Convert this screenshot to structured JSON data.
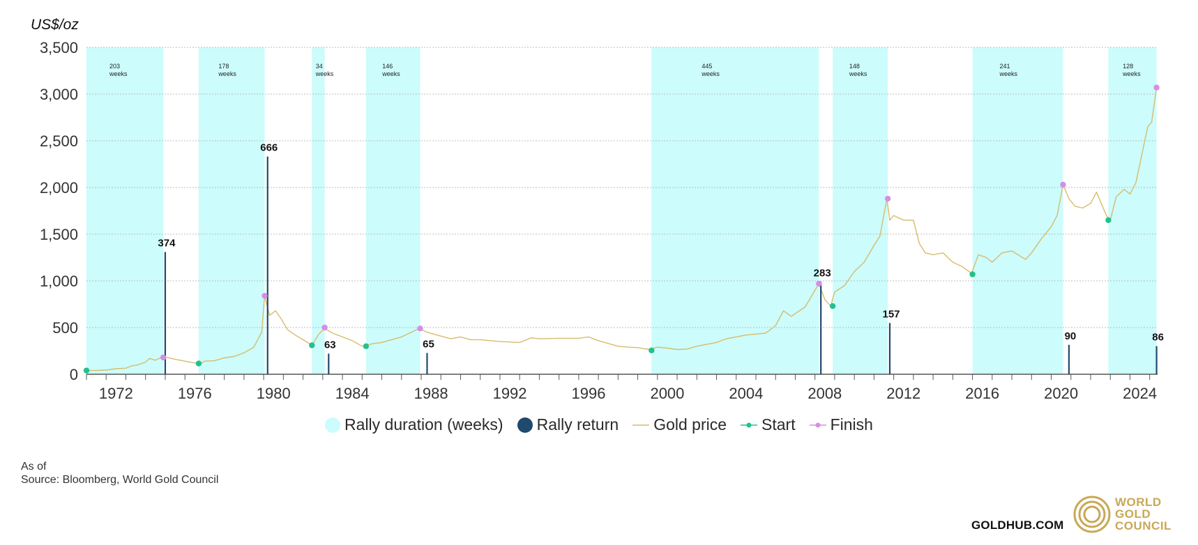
{
  "colors": {
    "rally_band": "#ccfcfc",
    "rally_return": "#1f4a6e",
    "gold_price": "#d6bc6a",
    "start": "#23c08e",
    "finish": "#d58ee6",
    "grid": "#bdbdbd",
    "axis": "#555555"
  },
  "unit_label": "US$/oz",
  "legend": {
    "rally_duration": "Rally duration (weeks)",
    "rally_return": "Rally return",
    "gold_price": "Gold price",
    "start": "Start",
    "finish": "Finish"
  },
  "footer": {
    "as_of": "As of",
    "source": "Source: Bloomberg, World Gold Council"
  },
  "brand": {
    "url": "GOLDHUB.COM",
    "logo_lines": [
      "WORLD",
      "GOLD",
      "COUNCIL"
    ],
    "logo_icon": "concentric-rings-icon"
  },
  "chart_data": {
    "type": "line",
    "ylabel": "US$/oz",
    "xlim": [
      1971.0,
      2025.4
    ],
    "ylim": [
      0,
      3500
    ],
    "yticks": [
      0,
      500,
      1000,
      1500,
      2000,
      2500,
      3000,
      3500
    ],
    "ytick_labels": [
      "0",
      "500",
      "1,000",
      "1,500",
      "2,000",
      "2,500",
      "3,000",
      "3,500"
    ],
    "xticks_labeled": [
      1972,
      1976,
      1980,
      1984,
      1988,
      1992,
      1996,
      2000,
      2004,
      2008,
      2012,
      2016,
      2020,
      2024
    ],
    "grid": true,
    "legend_position": "bottom-center",
    "gold_price": {
      "x": [
        1971.0,
        1971.5,
        1972.0,
        1972.5,
        1973.0,
        1973.3,
        1973.6,
        1974.0,
        1974.2,
        1974.5,
        1974.8,
        1975.0,
        1975.5,
        1976.0,
        1976.5,
        1976.8,
        1977.0,
        1977.5,
        1978.0,
        1978.5,
        1979.0,
        1979.5,
        1979.9,
        1980.05,
        1980.3,
        1980.6,
        1980.9,
        1981.2,
        1981.6,
        1982.0,
        1982.45,
        1982.8,
        1983.1,
        1983.5,
        1984.0,
        1984.5,
        1985.0,
        1985.2,
        1985.6,
        1986.0,
        1986.5,
        1987.0,
        1987.5,
        1987.9,
        1988.3,
        1988.8,
        1989.5,
        1990.0,
        1990.5,
        1991.0,
        1992.0,
        1993.0,
        1993.6,
        1994.0,
        1995.0,
        1996.0,
        1996.5,
        1997.0,
        1997.5,
        1998.0,
        1998.5,
        1999.0,
        1999.6,
        2000.0,
        2000.5,
        2001.0,
        2001.5,
        2002.0,
        2002.5,
        2003.0,
        2003.5,
        2004.0,
        2004.5,
        2005.0,
        2005.5,
        2006.0,
        2006.4,
        2006.8,
        2007.0,
        2007.5,
        2008.0,
        2008.2,
        2008.5,
        2008.8,
        2009.0,
        2009.5,
        2010.0,
        2010.5,
        2011.0,
        2011.3,
        2011.65,
        2011.8,
        2012.0,
        2012.5,
        2013.0,
        2013.3,
        2013.6,
        2014.0,
        2014.5,
        2015.0,
        2015.5,
        2015.95,
        2016.3,
        2016.7,
        2017.0,
        2017.5,
        2018.0,
        2018.7,
        2019.0,
        2019.5,
        2020.0,
        2020.3,
        2020.6,
        2020.9,
        2021.2,
        2021.6,
        2022.0,
        2022.3,
        2022.8,
        2023.0,
        2023.3,
        2023.7,
        2024.0,
        2024.3,
        2024.6,
        2024.9,
        2025.1,
        2025.35
      ],
      "y": [
        40,
        41,
        45,
        60,
        65,
        90,
        100,
        130,
        170,
        150,
        180,
        185,
        160,
        140,
        120,
        115,
        140,
        145,
        175,
        190,
        230,
        290,
        450,
        840,
        630,
        680,
        590,
        480,
        420,
        370,
        310,
        430,
        490,
        440,
        400,
        360,
        300,
        310,
        330,
        340,
        370,
        400,
        450,
        490,
        450,
        420,
        380,
        400,
        370,
        370,
        350,
        340,
        390,
        380,
        385,
        385,
        400,
        360,
        330,
        300,
        290,
        285,
        265,
        290,
        280,
        265,
        270,
        300,
        320,
        340,
        380,
        400,
        420,
        430,
        440,
        520,
        680,
        620,
        650,
        720,
        900,
        970,
        800,
        730,
        880,
        950,
        1100,
        1200,
        1380,
        1480,
        1880,
        1650,
        1700,
        1650,
        1650,
        1400,
        1300,
        1280,
        1300,
        1200,
        1150,
        1080,
        1280,
        1250,
        1200,
        1300,
        1320,
        1230,
        1300,
        1450,
        1580,
        1700,
        2030,
        1880,
        1800,
        1780,
        1830,
        1950,
        1700,
        1650,
        1900,
        1980,
        1930,
        2050,
        2350,
        2650,
        2700,
        3070
      ]
    },
    "rally_bands": [
      {
        "start": 1971.0,
        "end": 1974.9,
        "duration_weeks": 203,
        "label": "203\nweeks"
      },
      {
        "start": 1976.7,
        "end": 1980.05,
        "duration_weeks": 178,
        "label": "178\nweeks"
      },
      {
        "start": 1982.45,
        "end": 1983.1,
        "duration_weeks": 34,
        "label": "34\nweeks"
      },
      {
        "start": 1985.2,
        "end": 1987.95,
        "duration_weeks": 146,
        "label": "146\nweeks"
      },
      {
        "start": 1999.7,
        "end": 2008.2,
        "duration_weeks": 445,
        "label": "445\nweeks"
      },
      {
        "start": 2008.9,
        "end": 2011.7,
        "duration_weeks": 148,
        "label": "148\nweeks"
      },
      {
        "start": 2016.0,
        "end": 2020.6,
        "duration_weeks": 241,
        "label": "241\nweeks"
      },
      {
        "start": 2022.9,
        "end": 2025.35,
        "duration_weeks": 128,
        "label": "128\nweeks"
      }
    ],
    "rally_returns": [
      {
        "x": 1975.0,
        "value": 374,
        "label": "374"
      },
      {
        "x": 1980.2,
        "value": 666,
        "label": "666"
      },
      {
        "x": 1983.3,
        "value": 63,
        "label": "63"
      },
      {
        "x": 1988.3,
        "value": 65,
        "label": "65"
      },
      {
        "x": 2008.3,
        "value": 283,
        "label": "283"
      },
      {
        "x": 2011.8,
        "value": 157,
        "label": "157"
      },
      {
        "x": 2020.9,
        "value": 90,
        "label": "90"
      },
      {
        "x": 2025.35,
        "value": 86,
        "label": "86"
      }
    ],
    "start_points": [
      {
        "x": 1971.0,
        "y": 40
      },
      {
        "x": 1976.7,
        "y": 115
      },
      {
        "x": 1982.45,
        "y": 310
      },
      {
        "x": 1985.2,
        "y": 300
      },
      {
        "x": 1999.7,
        "y": 255
      },
      {
        "x": 2008.9,
        "y": 730
      },
      {
        "x": 2016.0,
        "y": 1070
      },
      {
        "x": 2022.9,
        "y": 1650
      }
    ],
    "finish_points": [
      {
        "x": 1974.9,
        "y": 180
      },
      {
        "x": 1980.05,
        "y": 840
      },
      {
        "x": 1983.1,
        "y": 500
      },
      {
        "x": 1987.95,
        "y": 490
      },
      {
        "x": 2008.2,
        "y": 970
      },
      {
        "x": 2011.7,
        "y": 1880
      },
      {
        "x": 2020.6,
        "y": 2030
      },
      {
        "x": 2025.35,
        "y": 3070
      }
    ]
  }
}
